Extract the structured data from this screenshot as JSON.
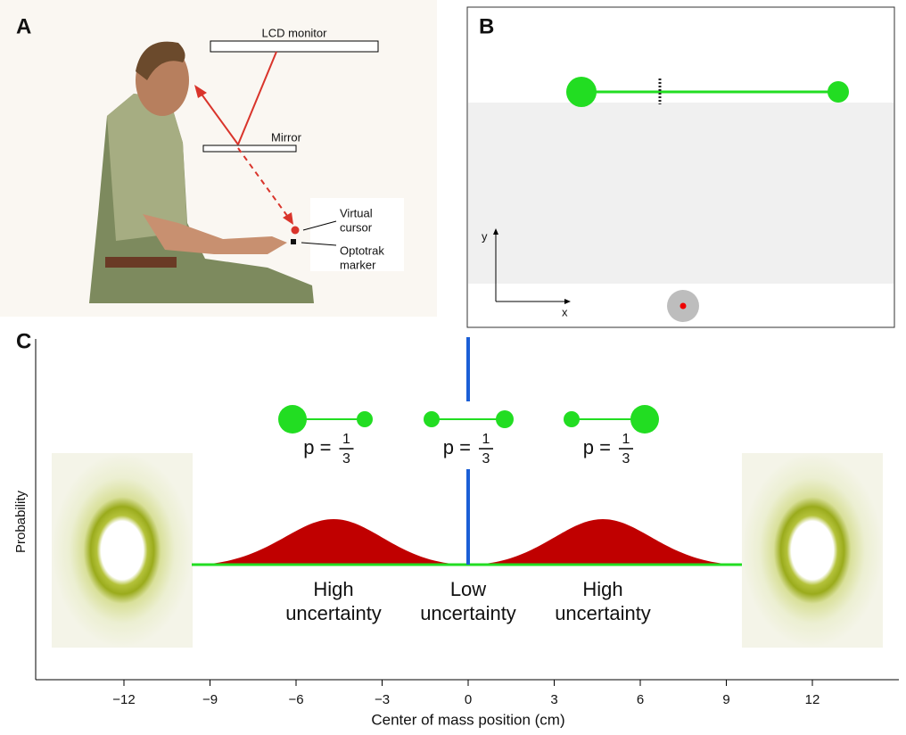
{
  "panel_a": {
    "letter": "A",
    "monitor_label": "LCD monitor",
    "mirror_label": "Mirror",
    "cursor_label": [
      "Virtual",
      "cursor"
    ],
    "marker_label": [
      "Optotrak",
      "marker"
    ]
  },
  "panel_b": {
    "letter": "B",
    "x_label": "x",
    "y_label": "y"
  },
  "panel_c": {
    "letter": "C",
    "probabilities": [
      {
        "prefix": "p =",
        "numerator": "1",
        "denominator": "3"
      },
      {
        "prefix": "p =",
        "numerator": "1",
        "denominator": "3"
      },
      {
        "prefix": "p =",
        "numerator": "1",
        "denominator": "3"
      }
    ],
    "annotations": [
      [
        "High",
        "uncertainty"
      ],
      [
        "Low",
        "uncertainty"
      ],
      [
        "High",
        "uncertainty"
      ]
    ]
  },
  "chart_data": {
    "type": "schematic",
    "xlabel": "Center of mass position (cm)",
    "ylabel": "Probability",
    "xlim": [
      -15,
      15
    ],
    "xticks": [
      {
        "value": -12,
        "label": "−12"
      },
      {
        "value": -9,
        "label": "−9"
      },
      {
        "value": -6,
        "label": "−6"
      },
      {
        "value": -3,
        "label": "−3"
      },
      0,
      3,
      6,
      9,
      12
    ]
  }
}
